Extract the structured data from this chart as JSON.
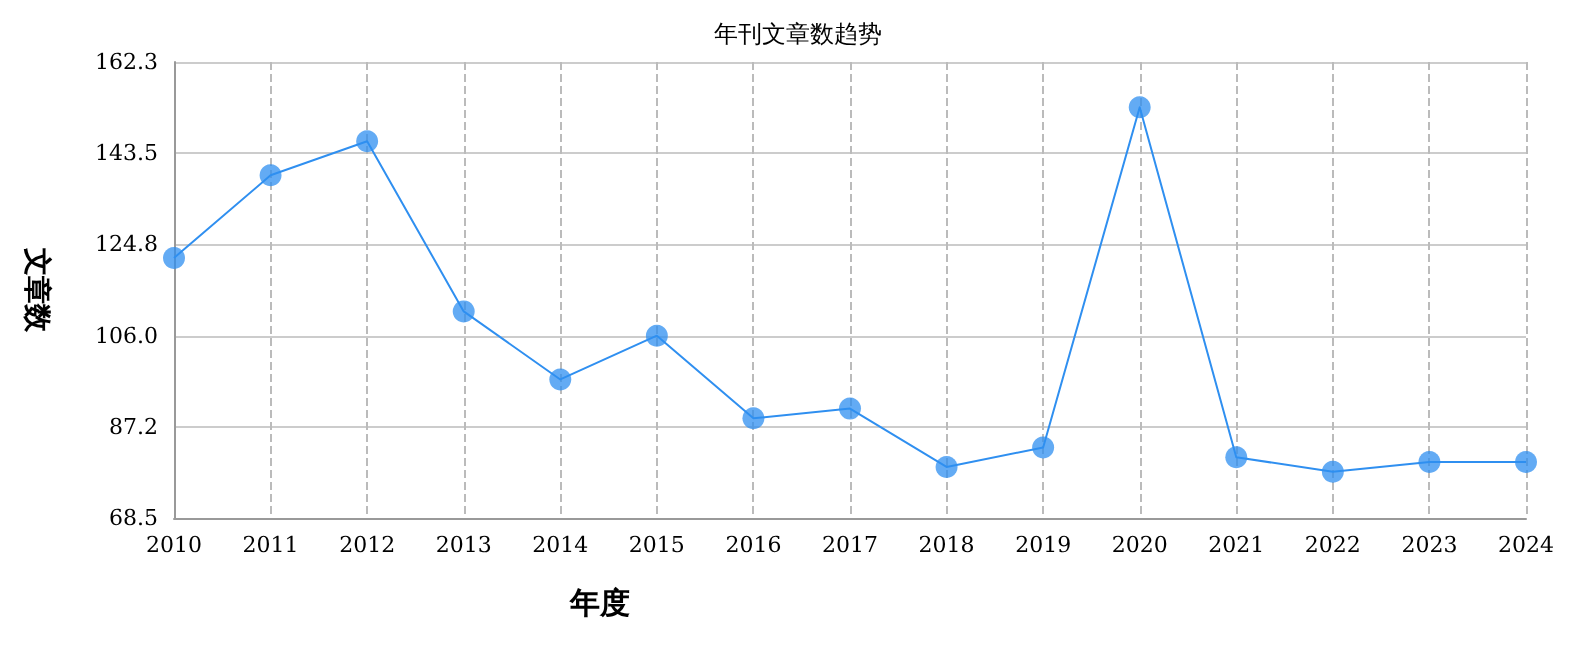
{
  "chart_data": {
    "type": "line",
    "title": "年刊文章数趋势",
    "xlabel": "年度",
    "ylabel": "文章数",
    "categories": [
      "2010",
      "2011",
      "2012",
      "2013",
      "2014",
      "2015",
      "2016",
      "2017",
      "2018",
      "2019",
      "2020",
      "2021",
      "2022",
      "2023",
      "2024"
    ],
    "series": [
      {
        "color": "#2f8ff0",
        "values": [
          122,
          139,
          146,
          111,
          97,
          106,
          89,
          91,
          79,
          83,
          153,
          81,
          78,
          80,
          80
        ]
      }
    ],
    "ylim": [
      68.5,
      162.3
    ],
    "yticks": [
      68.5,
      87.2,
      {
        "value": 106,
        "label": "106.0"
      },
      124.8,
      143.5,
      162.3
    ],
    "grid": true,
    "marker": "circle",
    "line_style": "solid"
  }
}
